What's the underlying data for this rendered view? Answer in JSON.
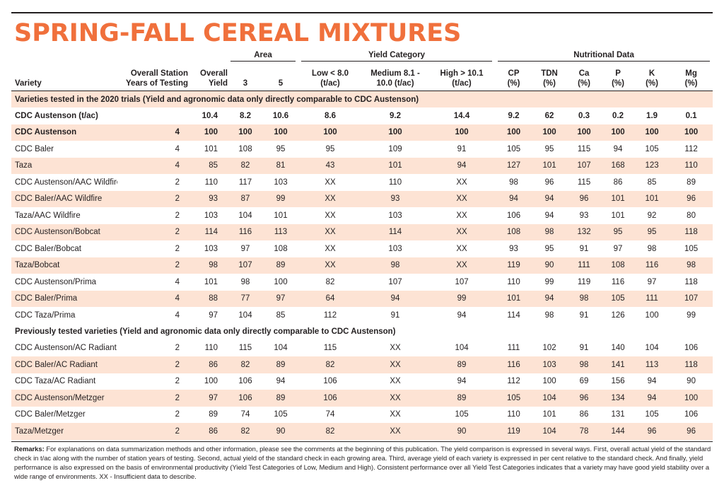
{
  "title": "SPRING-FALL CEREAL MIXTURES",
  "colors": {
    "accent": "#f0703c",
    "band": "#fde3d4"
  },
  "header": {
    "area": "Area",
    "yield_category": "Yield Category",
    "nutritional": "Nutritional Data",
    "variety": "Variety",
    "years_l1": "Overall Station",
    "years_l2": "Years of Testing",
    "overall_l1": "Overall",
    "overall_l2": "Yield",
    "area3": "3",
    "area5": "5",
    "low_l1": "Low  < 8.0",
    "low_l2": "(t/ac)",
    "med_l1": "Medium  8.1 -",
    "med_l2": "10.0  (t/ac)",
    "high_l1": "High  > 10.1",
    "high_l2": "(t/ac)",
    "cp": "CP",
    "tdn": "TDN",
    "ca": "Ca",
    "p": "P",
    "k": "K",
    "mg": "Mg",
    "pct": "(%)"
  },
  "section1": "Varieties tested in the 2020 trials (Yield and agronomic data only directly comparable to CDC Austenson)",
  "rows1": [
    [
      "CDC Austenson (t/ac)",
      "",
      "10.4",
      "8.2",
      "10.6",
      "8.6",
      "9.2",
      "14.4",
      "9.2",
      "62",
      "0.3",
      "0.2",
      "1.9",
      "0.1"
    ],
    [
      "CDC Austenson",
      "4",
      "100",
      "100",
      "100",
      "100",
      "100",
      "100",
      "100",
      "100",
      "100",
      "100",
      "100",
      "100"
    ],
    [
      "CDC Baler",
      "4",
      "101",
      "108",
      "95",
      "95",
      "109",
      "91",
      "105",
      "95",
      "115",
      "94",
      "105",
      "112"
    ],
    [
      "Taza",
      "4",
      "85",
      "82",
      "81",
      "43",
      "101",
      "94",
      "127",
      "101",
      "107",
      "168",
      "123",
      "110"
    ],
    [
      "CDC Austenson/AAC Wildfire",
      "2",
      "110",
      "117",
      "103",
      "XX",
      "110",
      "XX",
      "98",
      "96",
      "115",
      "86",
      "85",
      "89"
    ],
    [
      "CDC Baler/AAC Wildfire",
      "2",
      "93",
      "87",
      "99",
      "XX",
      "93",
      "XX",
      "94",
      "94",
      "96",
      "101",
      "101",
      "96"
    ],
    [
      "Taza/AAC Wildfire",
      "2",
      "103",
      "104",
      "101",
      "XX",
      "103",
      "XX",
      "106",
      "94",
      "93",
      "101",
      "92",
      "80"
    ],
    [
      "CDC Austenson/Bobcat",
      "2",
      "114",
      "116",
      "113",
      "XX",
      "114",
      "XX",
      "108",
      "98",
      "132",
      "95",
      "95",
      "118"
    ],
    [
      "CDC Baler/Bobcat",
      "2",
      "103",
      "97",
      "108",
      "XX",
      "103",
      "XX",
      "93",
      "95",
      "91",
      "97",
      "98",
      "105"
    ],
    [
      "Taza/Bobcat",
      "2",
      "98",
      "107",
      "89",
      "XX",
      "98",
      "XX",
      "119",
      "90",
      "111",
      "108",
      "116",
      "98"
    ],
    [
      "CDC Austenson/Prima",
      "4",
      "101",
      "98",
      "100",
      "82",
      "107",
      "107",
      "110",
      "99",
      "119",
      "116",
      "97",
      "118"
    ],
    [
      "CDC Baler/Prima",
      "4",
      "88",
      "77",
      "97",
      "64",
      "94",
      "99",
      "101",
      "94",
      "98",
      "105",
      "111",
      "107"
    ],
    [
      "CDC Taza/Prima",
      "4",
      "97",
      "104",
      "85",
      "112",
      "91",
      "94",
      "114",
      "98",
      "91",
      "126",
      "100",
      "99"
    ]
  ],
  "section2": "Previously tested varieties (Yield and agronomic data only directly comparable to CDC Austenson)",
  "rows2": [
    [
      "CDC Austenson/AC Radiant",
      "2",
      "110",
      "115",
      "104",
      "115",
      "XX",
      "104",
      "111",
      "102",
      "91",
      "140",
      "104",
      "106"
    ],
    [
      "CDC Baler/AC Radiant",
      "2",
      "86",
      "82",
      "89",
      "82",
      "XX",
      "89",
      "116",
      "103",
      "98",
      "141",
      "113",
      "118"
    ],
    [
      "CDC Taza/AC Radiant",
      "2",
      "100",
      "106",
      "94",
      "106",
      "XX",
      "94",
      "112",
      "100",
      "69",
      "156",
      "94",
      "90"
    ],
    [
      "CDC Austenson/Metzger",
      "2",
      "97",
      "106",
      "89",
      "106",
      "XX",
      "89",
      "105",
      "104",
      "96",
      "134",
      "94",
      "100"
    ],
    [
      "CDC Baler/Metzger",
      "2",
      "89",
      "74",
      "105",
      "74",
      "XX",
      "105",
      "110",
      "101",
      "86",
      "131",
      "105",
      "106"
    ],
    [
      "Taza/Metzger",
      "2",
      "86",
      "82",
      "90",
      "82",
      "XX",
      "90",
      "119",
      "104",
      "78",
      "144",
      "96",
      "96"
    ]
  ],
  "remarks_label": "Remarks:",
  "remarks_text": " For explanations on data summarization methods and other information, please see the comments at the beginning of this publication. The yield comparison is expressed in several ways. First, overall actual yield of the standard check in t/ac along with the number of station years of testing. Second, actual yield of the standard check in each growing area. Third, average yield of each variety is expressed in per cent relative to the standard check. And finally, yield performance is also expressed on the basis of environmental productivity (Yield Test Categories of Low, Medium and High). Consistent performance over all Yield Test Categories indicates that a variety may have good yield stability over a wide range of environments. XX - Insufficient data to describe."
}
